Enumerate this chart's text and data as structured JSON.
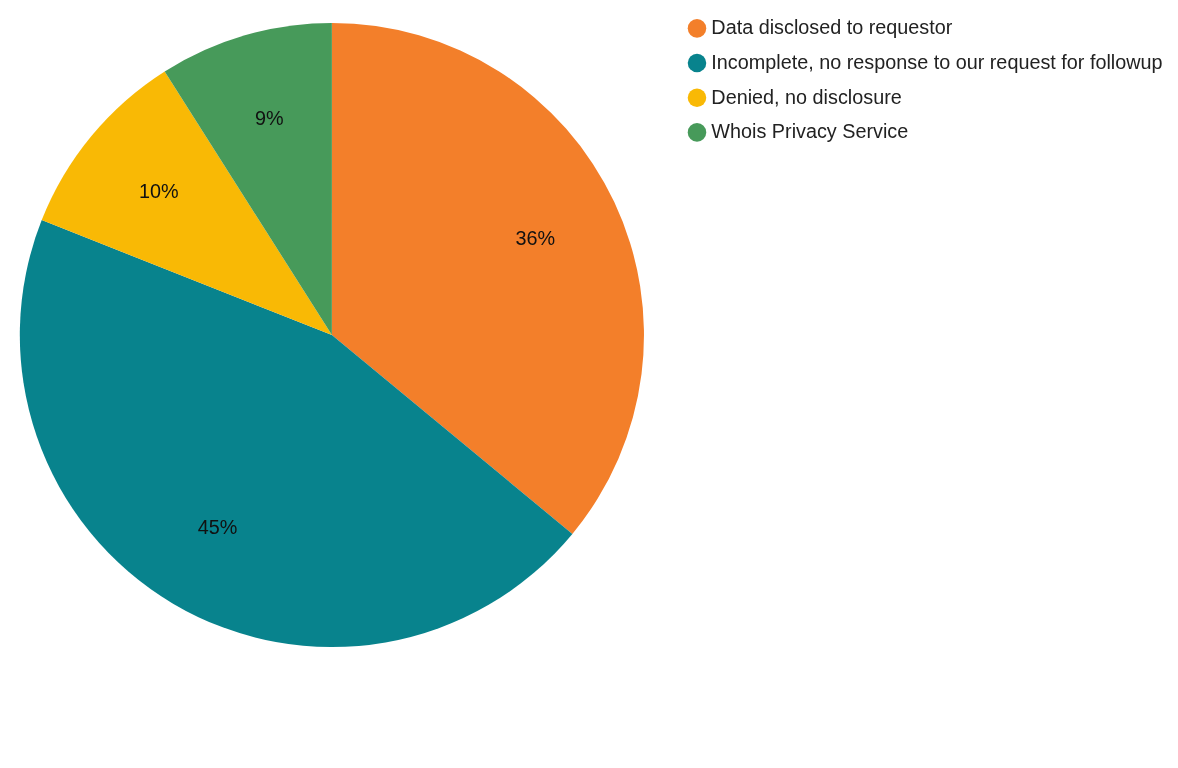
{
  "chart_data": {
    "type": "pie",
    "categories": [
      "Data disclosed to requestor",
      "Incomplete, no response to our request for followup",
      "Denied, no disclosure",
      "Whois Privacy Service"
    ],
    "values": [
      36,
      45,
      10,
      9
    ],
    "colors": [
      "#f37f2a",
      "#08838d",
      "#f9b905",
      "#479a5a"
    ],
    "value_labels": [
      "36%",
      "45%",
      "10%",
      "9%"
    ],
    "legend": "top right"
  }
}
